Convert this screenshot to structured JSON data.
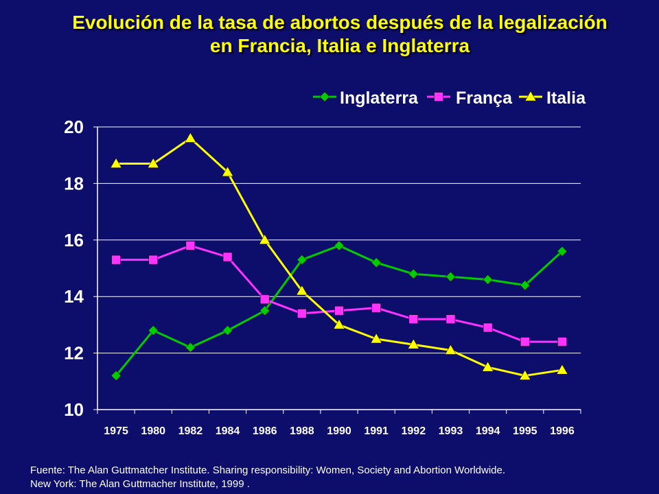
{
  "title_line1": "Evolución de la tasa de abortos después de la legalización",
  "title_line2": "en Francia, Italia e Inglaterra",
  "source_line1": "Fuente: The Alan Guttmatcher Institute. Sharing responsibility: Women, Society and Abortion Worldwide.",
  "source_line2": "New York: The Alan Guttmacher Institute, 1999 .",
  "chart_data": {
    "type": "line",
    "categories": [
      "1975",
      "1980",
      "1982",
      "1984",
      "1986",
      "1988",
      "1990",
      "1991",
      "1992",
      "1993",
      "1994",
      "1995",
      "1996"
    ],
    "ylim": [
      10,
      20
    ],
    "yticks": [
      10,
      12,
      14,
      16,
      18,
      20
    ],
    "grid": true,
    "legend_position": "top-right",
    "series": [
      {
        "name": "Inglaterra",
        "color": "#00cc00",
        "marker": "diamond",
        "values": [
          11.2,
          12.8,
          12.2,
          12.8,
          13.5,
          15.3,
          15.8,
          15.2,
          14.8,
          14.7,
          14.6,
          14.4,
          15.6
        ]
      },
      {
        "name": "França",
        "color": "#ff33ff",
        "marker": "square",
        "values": [
          15.3,
          15.3,
          15.8,
          15.4,
          13.9,
          13.4,
          13.5,
          13.6,
          13.2,
          13.2,
          12.9,
          12.4,
          12.4
        ]
      },
      {
        "name": "Italia",
        "color": "#ffff00",
        "marker": "triangle",
        "values": [
          18.7,
          18.7,
          19.6,
          18.4,
          16.0,
          14.2,
          13.0,
          12.5,
          12.3,
          12.1,
          11.5,
          11.2,
          11.4
        ]
      }
    ]
  }
}
